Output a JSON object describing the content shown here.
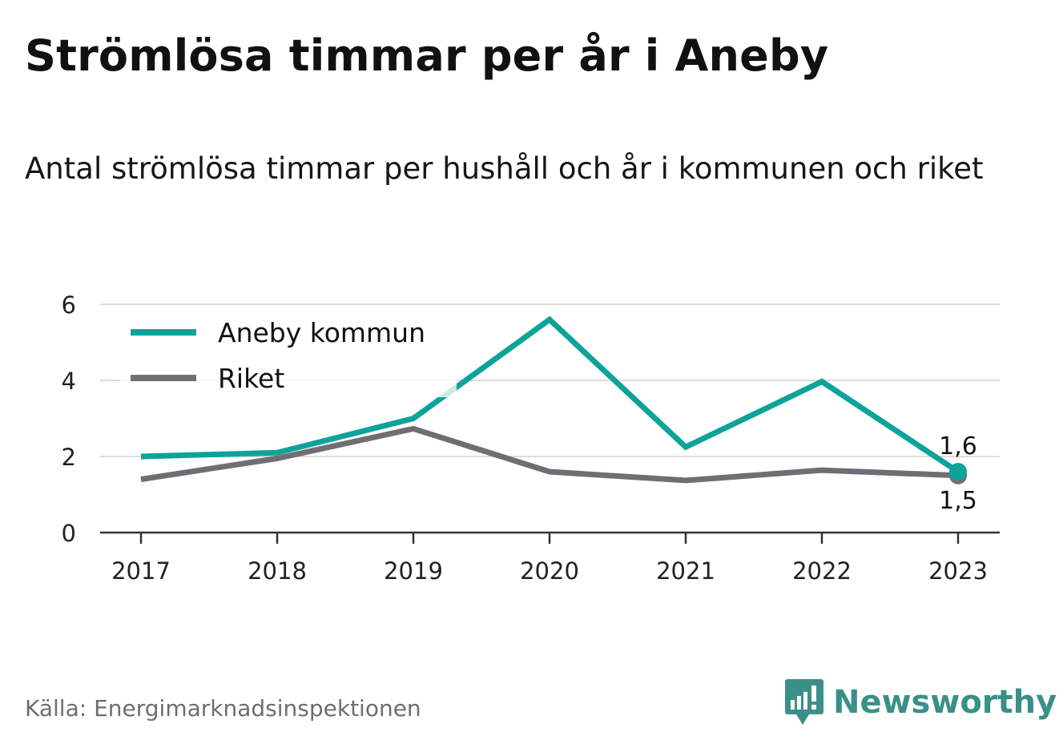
{
  "chart_data": {
    "type": "line",
    "title": "Strömlösa timmar per år i Aneby",
    "subtitle": "Antal strömlösa timmar per hushåll och år i kommunen och riket",
    "x": [
      "2017",
      "2018",
      "2019",
      "2020",
      "2021",
      "2022",
      "2023"
    ],
    "ylim": [
      0,
      6
    ],
    "yticks": [
      "0",
      "2",
      "4",
      "6"
    ],
    "grid": true,
    "legend_position": "top-left",
    "series": [
      {
        "name": "Aneby kommun",
        "color": "#0ca39a",
        "values": [
          2.0,
          2.1,
          3.0,
          5.6,
          2.25,
          3.97,
          1.6
        ]
      },
      {
        "name": "Riket",
        "color": "#6f6e75",
        "values": [
          1.4,
          1.95,
          2.73,
          1.6,
          1.37,
          1.64,
          1.5
        ]
      }
    ],
    "end_labels": [
      {
        "series": "Aneby kommun",
        "text": "1,6"
      },
      {
        "series": "Riket",
        "text": "1,5"
      }
    ]
  },
  "footer": {
    "source": "Källa: Energimarknadsinspektionen",
    "brand": "Newsworthy",
    "logo_color": "#3a9089"
  }
}
